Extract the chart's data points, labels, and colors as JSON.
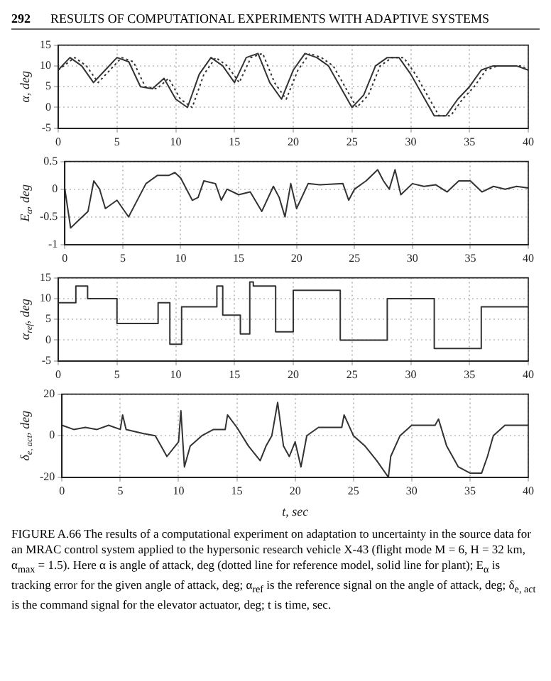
{
  "chart_data": [
    {
      "type": "line",
      "annotations": [
        "292",
        "RESULTS OF COMPUTATIONAL EXPERIMENTS WITH ADAPTIVE SYSTEMS"
      ],
      "ylabel": "α, deg",
      "xlim": [
        0,
        40
      ],
      "xticks": [
        0,
        5,
        10,
        15,
        20,
        25,
        30,
        35,
        40
      ],
      "ylim": [
        -5,
        15
      ],
      "yticks": [
        -5,
        0,
        5,
        10,
        15
      ],
      "grid": true,
      "legend": false,
      "marker": "none",
      "x": [
        0,
        1,
        2,
        3,
        4,
        5,
        6,
        7,
        8,
        9,
        10,
        11,
        12,
        13,
        14,
        15,
        16,
        17,
        18,
        19,
        20,
        21,
        22,
        23,
        24,
        25,
        26,
        27,
        28,
        29,
        30,
        31,
        32,
        33,
        34,
        35,
        36,
        37,
        38,
        39,
        40
      ],
      "series": [
        {
          "color": "#333333",
          "line_style": "dotted",
          "x": [
            0,
            1.4,
            2.4,
            3.4,
            4.4,
            5.4,
            6.4,
            7.4,
            8.4,
            9.4,
            10.4,
            11.4,
            12.4,
            13.4,
            14.4,
            15.4,
            16.4,
            17.4,
            18.4,
            19.4,
            20.4,
            21.4,
            22.4,
            23.4,
            24.4,
            25.4,
            26.4,
            27.4,
            28.4,
            29.4,
            30.4,
            31.4,
            32.4,
            33.4,
            34.4,
            35.4,
            36.4,
            37.4,
            38.4,
            39.4,
            40
          ],
          "values": [
            9,
            12,
            10,
            6,
            9,
            12,
            11,
            5,
            4.5,
            7,
            2,
            0,
            8,
            12,
            10,
            6,
            12,
            13,
            6,
            2,
            9,
            13,
            12,
            10,
            5,
            0,
            3,
            10,
            12,
            12,
            8,
            3,
            -2,
            -2,
            2,
            5,
            9,
            10,
            10,
            10,
            9
          ]
        },
        {
          "color": "#333333",
          "line_style": "solid",
          "values": [
            9,
            12,
            10,
            6,
            9,
            12,
            11,
            5,
            4.5,
            7,
            2,
            0,
            8,
            12,
            10,
            6,
            12,
            13,
            6,
            2,
            9,
            13,
            12,
            10,
            5,
            0,
            3,
            10,
            12,
            12,
            8,
            3,
            -2,
            -2,
            2,
            5,
            9,
            10,
            10,
            10,
            9
          ]
        }
      ]
    },
    {
      "type": "line",
      "ylabel": "E$_{α}$, deg",
      "xlim": [
        0,
        40
      ],
      "xticks": [
        0,
        5,
        10,
        15,
        20,
        25,
        30,
        35,
        40
      ],
      "ylim": [
        -1,
        0.5
      ],
      "yticks": [
        -1,
        -0.5,
        0,
        0.5
      ],
      "grid": true,
      "legend": false,
      "marker": "none",
      "x": [
        0,
        0.5,
        1,
        2,
        2.5,
        3,
        3.5,
        4.5,
        5.5,
        6,
        7,
        8,
        9,
        9.5,
        10,
        11,
        11.5,
        12,
        13,
        13.5,
        14,
        15,
        16,
        17,
        18,
        18.5,
        19,
        19.5,
        20,
        21,
        22,
        24,
        24.5,
        25,
        26,
        27,
        27.5,
        28,
        28.5,
        29,
        30,
        31,
        32,
        33,
        34,
        35,
        36,
        37,
        38,
        39,
        40
      ],
      "series": [
        {
          "color": "#333333",
          "line_style": "solid",
          "values": [
            0,
            -0.7,
            -0.6,
            -0.4,
            0.15,
            0,
            -0.35,
            -0.2,
            -0.5,
            -0.3,
            0.1,
            0.25,
            0.25,
            0.3,
            0.2,
            -0.2,
            -0.15,
            0.15,
            0.1,
            -0.2,
            0,
            -0.1,
            -0.05,
            -0.4,
            0.05,
            -0.15,
            -0.5,
            0.1,
            -0.35,
            0.1,
            0.08,
            0.1,
            -0.2,
            0,
            0.15,
            0.35,
            0.15,
            0,
            0.35,
            -0.1,
            0.1,
            0.05,
            0.08,
            -0.05,
            0.15,
            0.15,
            -0.05,
            0.05,
            0,
            0.05,
            0.02
          ]
        }
      ]
    },
    {
      "type": "step",
      "ylabel": "α$_{ref}$, deg",
      "xlim": [
        0,
        40
      ],
      "xticks": [
        0,
        5,
        10,
        15,
        20,
        25,
        30,
        35,
        40
      ],
      "ylim": [
        -5,
        15
      ],
      "yticks": [
        -5,
        0,
        5,
        10,
        15
      ],
      "grid": true,
      "legend": false,
      "marker": "none",
      "x": [
        0,
        1.5,
        2.5,
        5,
        8.5,
        9.5,
        10.5,
        13.5,
        14,
        15.5,
        16.3,
        16.6,
        18.5,
        20,
        24,
        28,
        32,
        36,
        40
      ],
      "series": [
        {
          "color": "#333333",
          "line_style": "solid",
          "values": [
            9,
            13,
            10,
            4,
            9,
            -1,
            8,
            13,
            6,
            1.5,
            14,
            13,
            2,
            12,
            0,
            10,
            -2,
            8,
            8
          ]
        }
      ]
    },
    {
      "type": "line",
      "ylabel": "δ$_{e, act}$, deg",
      "xlabel": "t, sec",
      "xlim": [
        0,
        40
      ],
      "xticks": [
        0,
        5,
        10,
        15,
        20,
        25,
        30,
        35,
        40
      ],
      "ylim": [
        -20,
        20
      ],
      "yticks": [
        -20,
        0,
        20
      ],
      "grid": true,
      "legend": false,
      "marker": "none",
      "annotations": [
        "FIGURE A.66 The results of a computational experiment on adaptation to uncertainty in the source data for an MRAC control system applied to the hypersonic research vehicle X-43 (flight mode M = 6, H = 32 km, α$_{max}$ = 1.5). Here α is angle of attack, deg (dotted line for reference model, solid line for plant); E$_{α}$ is tracking error for the given angle of attack, deg; α$_{ref}$ is the reference signal on the angle of attack, deg; δ$_{e, act}$ is the command signal for the elevator actuator, deg; t is time, sec."
      ],
      "x": [
        0,
        1,
        2,
        3,
        4,
        5,
        5.2,
        5.5,
        7,
        8,
        8.5,
        9,
        10,
        10.2,
        10.5,
        11,
        12,
        13,
        14,
        14.2,
        15,
        16,
        17,
        17.5,
        18,
        18.5,
        19,
        19.5,
        20,
        20.5,
        21,
        22,
        23,
        24,
        24.2,
        25,
        26,
        27,
        28,
        28.2,
        29,
        30,
        31,
        32,
        32.3,
        33,
        34,
        35,
        36,
        36.5,
        37,
        38,
        40
      ],
      "series": [
        {
          "color": "#333333",
          "line_style": "solid",
          "values": [
            5,
            3,
            4,
            3,
            5,
            3,
            10,
            3,
            1,
            0,
            -5,
            -10,
            -3,
            12,
            -15,
            -5,
            0,
            3,
            3,
            10,
            4,
            -5,
            -12,
            -5,
            0,
            16,
            -5,
            -10,
            -3,
            -15,
            0,
            4,
            4,
            4,
            10,
            0,
            -5,
            -12,
            -20,
            -10,
            0,
            5,
            5,
            5,
            8,
            -5,
            -15,
            -18,
            -18,
            -10,
            0,
            5,
            5
          ]
        }
      ]
    }
  ]
}
